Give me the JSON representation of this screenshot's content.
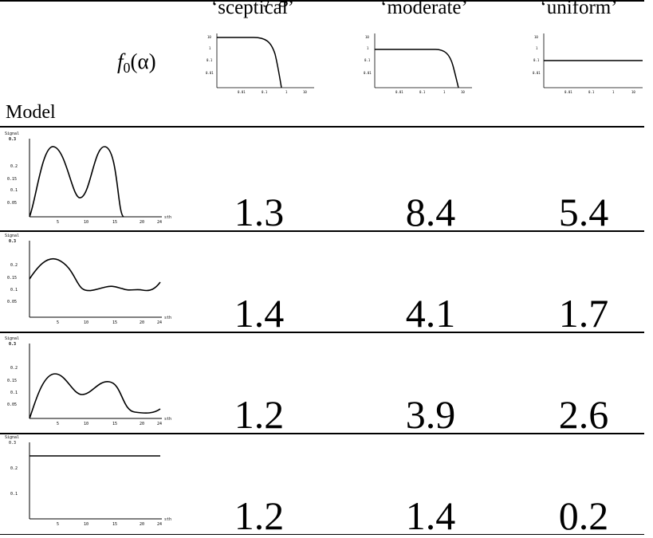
{
  "header": {
    "title_fragment": "y       g",
    "columns": [
      "‘sceptical’",
      "‘moderate’",
      "‘uniform’"
    ],
    "f0_label": "f",
    "f0_sub": "0",
    "f0_arg": "(α)",
    "model_label": "Model",
    "prior_ticks_x": [
      "0.01",
      "0.1",
      "1",
      "10"
    ],
    "prior_ticks_y": [
      "10",
      "1",
      "0.1",
      "0.01"
    ]
  },
  "model_plot_labels": {
    "y_title": "Signal",
    "x_title": "sth",
    "x_ticks": [
      "5",
      "10",
      "15",
      "20",
      "24"
    ]
  },
  "rows": [
    {
      "y_ticks": [
        "0.3",
        "0.2",
        "0.15",
        "0.1",
        "0.05"
      ],
      "values": [
        "1.3",
        "8.4",
        "5.4"
      ]
    },
    {
      "y_ticks": [
        "0.3",
        "0.2",
        "0.15",
        "0.1",
        "0.05"
      ],
      "values": [
        "1.4",
        "4.1",
        "1.7"
      ]
    },
    {
      "y_ticks": [
        "0.3",
        "0.2",
        "0.15",
        "0.1",
        "0.05"
      ],
      "values": [
        "1.2",
        "3.9",
        "2.6"
      ]
    },
    {
      "y_ticks": [
        "0.3",
        "0.2",
        "0.1"
      ],
      "values": [
        "1.2",
        "1.4",
        "0.2"
      ]
    }
  ]
}
